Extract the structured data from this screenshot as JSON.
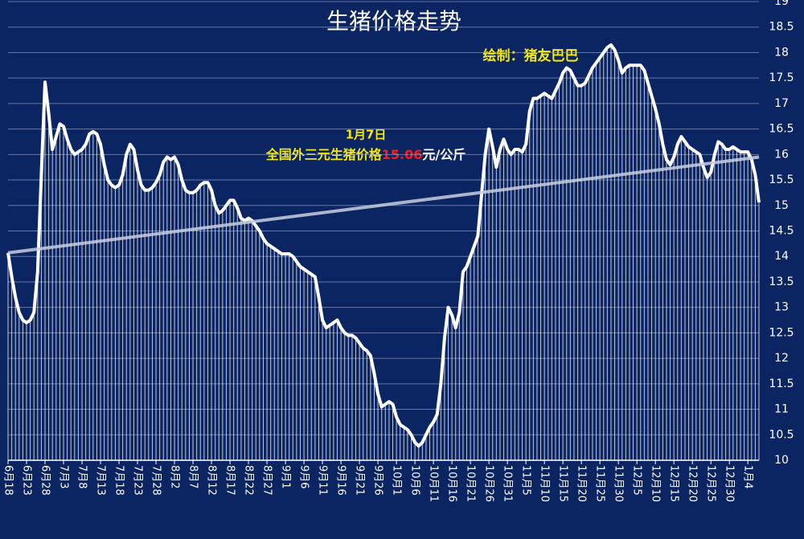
{
  "chart_data": {
    "type": "line",
    "title": "生猪价格走势",
    "credit": "绘制：猪友巴巴",
    "annotation": {
      "date": "1月7日",
      "prefix": "全国外三元生猪价格",
      "value": "15.06",
      "unit": "元/公斤"
    },
    "categories": [
      "6月18",
      null,
      null,
      null,
      null,
      "6月23",
      null,
      null,
      null,
      null,
      "6月28",
      null,
      null,
      null,
      null,
      "7月3",
      null,
      null,
      null,
      null,
      "7月8",
      null,
      null,
      null,
      null,
      "7月13",
      null,
      null,
      null,
      null,
      "7月18",
      null,
      null,
      null,
      null,
      "7月23",
      null,
      null,
      null,
      null,
      "7月28",
      null,
      null,
      null,
      null,
      "8月2",
      null,
      null,
      null,
      null,
      "8月7",
      null,
      null,
      null,
      null,
      "8月12",
      null,
      null,
      null,
      null,
      "8月17",
      null,
      null,
      null,
      null,
      "8月22",
      null,
      null,
      null,
      null,
      "8月27",
      null,
      null,
      null,
      null,
      "9月1",
      null,
      null,
      null,
      null,
      "9月6",
      null,
      null,
      null,
      null,
      "9月11",
      null,
      null,
      null,
      null,
      "9月16",
      null,
      null,
      null,
      null,
      "9月21",
      null,
      null,
      null,
      null,
      "9月26",
      null,
      null,
      null,
      null,
      "10月1",
      null,
      null,
      null,
      null,
      "10月6",
      null,
      null,
      null,
      null,
      "10月11",
      null,
      null,
      null,
      null,
      "10月16",
      null,
      null,
      null,
      null,
      "10月21",
      null,
      null,
      null,
      null,
      "10月26",
      null,
      null,
      null,
      null,
      "10月31",
      null,
      null,
      null,
      null,
      "11月5",
      null,
      null,
      null,
      null,
      "11月10",
      null,
      null,
      null,
      null,
      "11月15",
      null,
      null,
      null,
      null,
      "11月20",
      null,
      null,
      null,
      null,
      "11月25",
      null,
      null,
      null,
      null,
      "11月30",
      null,
      null,
      null,
      null,
      "12月5",
      null,
      null,
      null,
      null,
      "12月10",
      null,
      null,
      null,
      null,
      "12月15",
      null,
      null,
      null,
      null,
      "12月20",
      null,
      null,
      null,
      null,
      "12月25",
      null,
      null,
      null,
      null,
      "12月30",
      null,
      null,
      null,
      null,
      "1月4",
      null,
      null,
      null
    ],
    "values": [
      14.07,
      13.6,
      13.2,
      12.9,
      12.75,
      12.7,
      12.75,
      12.9,
      13.7,
      15.6,
      17.42,
      16.8,
      16.1,
      16.35,
      16.6,
      16.55,
      16.3,
      16.1,
      16.0,
      16.05,
      16.1,
      16.2,
      16.4,
      16.45,
      16.4,
      16.2,
      15.8,
      15.5,
      15.4,
      15.35,
      15.4,
      15.6,
      16.0,
      16.2,
      16.1,
      15.7,
      15.4,
      15.3,
      15.3,
      15.35,
      15.45,
      15.6,
      15.85,
      15.95,
      15.9,
      15.95,
      15.8,
      15.5,
      15.3,
      15.25,
      15.25,
      15.3,
      15.4,
      15.45,
      15.45,
      15.3,
      15.0,
      14.85,
      14.9,
      15.0,
      15.1,
      15.1,
      14.95,
      14.75,
      14.7,
      14.75,
      14.7,
      14.6,
      14.5,
      14.35,
      14.25,
      14.2,
      14.15,
      14.1,
      14.05,
      14.05,
      14.05,
      14.0,
      13.9,
      13.8,
      13.75,
      13.7,
      13.65,
      13.6,
      13.2,
      12.75,
      12.6,
      12.65,
      12.7,
      12.75,
      12.6,
      12.5,
      12.45,
      12.45,
      12.4,
      12.3,
      12.2,
      12.15,
      12.05,
      11.7,
      11.3,
      11.05,
      11.1,
      11.15,
      11.1,
      10.85,
      10.7,
      10.65,
      10.6,
      10.5,
      10.35,
      10.28,
      10.35,
      10.5,
      10.65,
      10.75,
      10.9,
      11.5,
      12.4,
      13.0,
      12.85,
      12.6,
      12.9,
      13.7,
      13.8,
      14.0,
      14.2,
      14.4,
      15.2,
      16.0,
      16.5,
      16.15,
      15.75,
      16.1,
      16.3,
      16.1,
      16.0,
      16.1,
      16.1,
      16.05,
      16.2,
      16.85,
      17.1,
      17.1,
      17.15,
      17.2,
      17.15,
      17.1,
      17.25,
      17.4,
      17.6,
      17.7,
      17.65,
      17.5,
      17.35,
      17.35,
      17.4,
      17.55,
      17.7,
      17.8,
      17.9,
      18.0,
      18.1,
      18.15,
      18.05,
      17.85,
      17.6,
      17.7,
      17.75,
      17.75,
      17.75,
      17.75,
      17.65,
      17.4,
      17.15,
      16.9,
      16.6,
      16.2,
      15.9,
      15.8,
      15.95,
      16.2,
      16.35,
      16.25,
      16.15,
      16.1,
      16.05,
      16.0,
      15.75,
      15.55,
      15.65,
      16.0,
      16.25,
      16.2,
      16.1,
      16.1,
      16.15,
      16.1,
      16.05,
      16.05,
      16.05,
      15.9,
      15.6,
      15.06
    ],
    "color": "#ffffff",
    "trendline": [
      14.07,
      15.95
    ],
    "trend_color": "#c9cfe0",
    "ylim": [
      10,
      19
    ],
    "yticks": [
      10,
      10.5,
      11,
      11.5,
      12,
      12.5,
      13,
      13.5,
      14,
      14.5,
      15,
      15.5,
      16,
      16.5,
      17,
      17.5,
      18,
      18.5,
      19
    ],
    "grid": true
  }
}
